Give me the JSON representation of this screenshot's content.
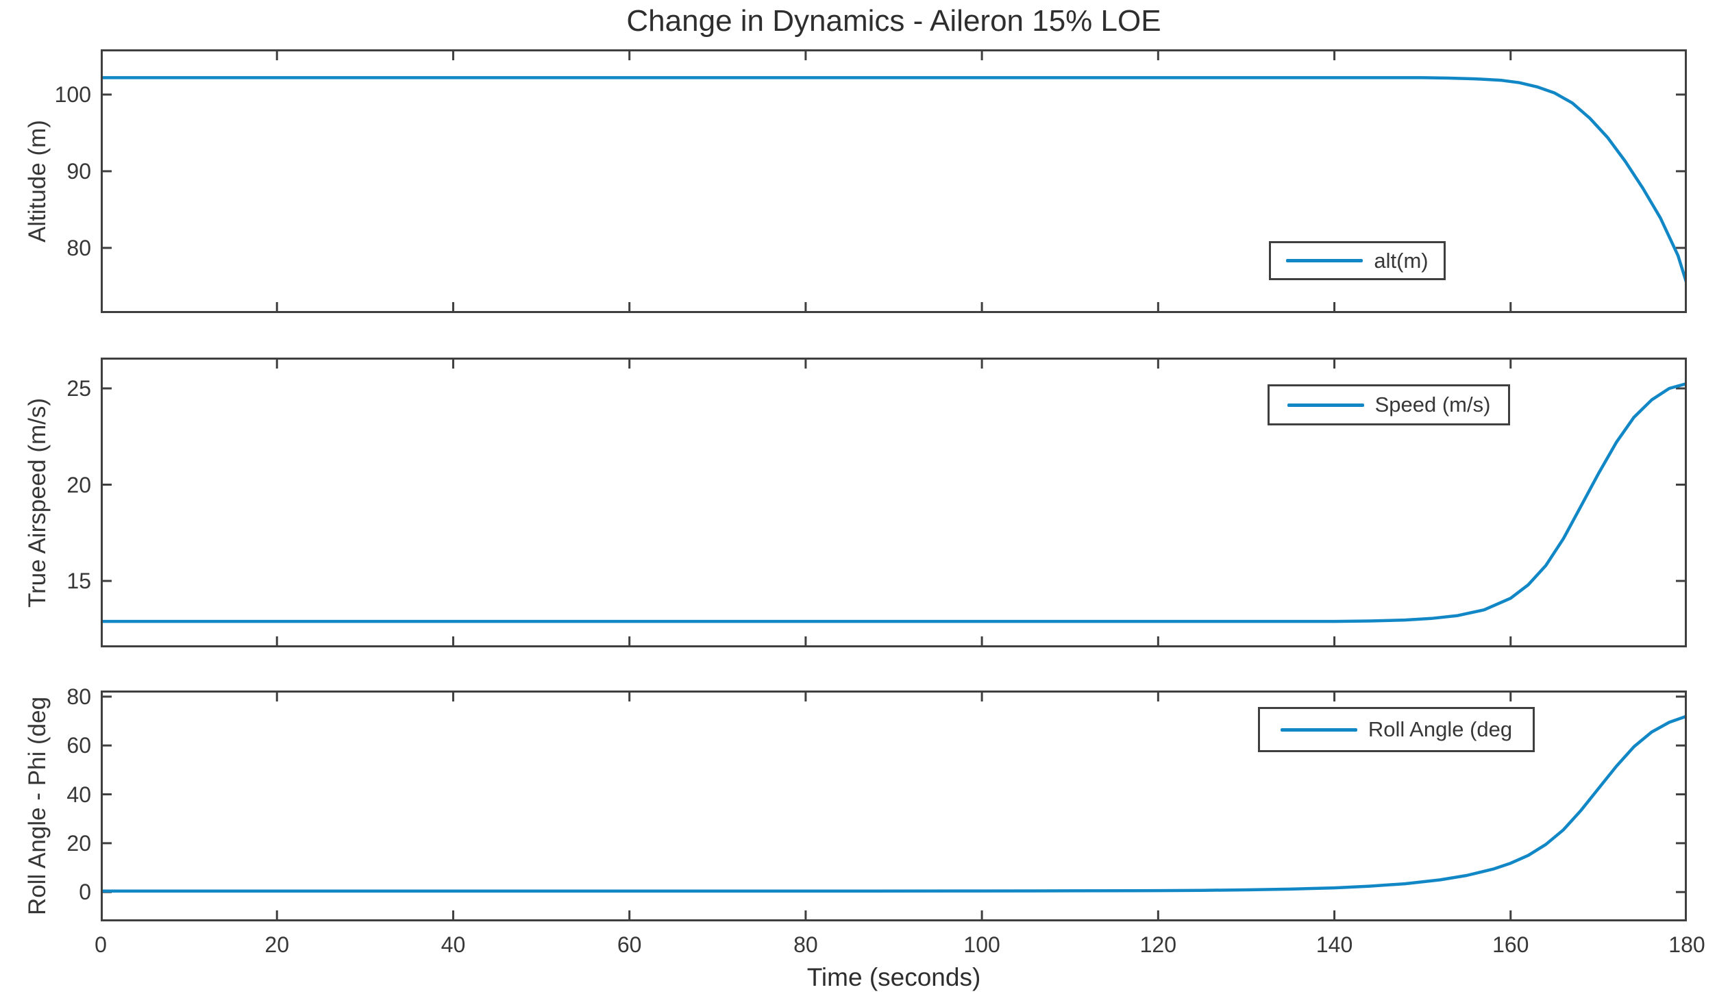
{
  "figure": {
    "title": "Change in Dynamics - Aileron 15% LOE",
    "xlabel": "Time (seconds)",
    "background_color": "#ffffff",
    "axis_color": "#3f3f3f",
    "text_color": "#373737",
    "line_color": "#1287c6"
  },
  "chart_data": [
    {
      "type": "line",
      "ylabel": "Altitude (m)",
      "legend": "alt(m)",
      "legend_position": "right-lower-inset",
      "grid": false,
      "xlim": [
        0,
        180
      ],
      "ylim": [
        71.5,
        105.9
      ],
      "xticks": [
        0,
        20,
        40,
        60,
        80,
        100,
        120,
        140,
        160,
        180
      ],
      "yticks": [
        80,
        90,
        100
      ],
      "x": [
        0,
        10,
        20,
        30,
        40,
        50,
        60,
        70,
        80,
        90,
        100,
        110,
        120,
        130,
        140,
        145,
        150,
        153,
        156,
        159,
        161,
        163,
        165,
        167,
        169,
        171,
        173,
        175,
        177,
        179,
        180
      ],
      "y": [
        102.2,
        102.2,
        102.2,
        102.2,
        102.2,
        102.2,
        102.2,
        102.2,
        102.2,
        102.2,
        102.2,
        102.2,
        102.2,
        102.2,
        102.2,
        102.2,
        102.2,
        102.15,
        102.05,
        101.85,
        101.55,
        101.0,
        100.2,
        98.9,
        96.9,
        94.4,
        91.3,
        87.8,
        83.9,
        79.0,
        75.3
      ]
    },
    {
      "type": "line",
      "ylabel": "True Airspeed (m/s)",
      "legend": "Speed (m/s)",
      "legend_position": "top-right-inset",
      "grid": false,
      "xlim": [
        0,
        180
      ],
      "ylim": [
        11.55,
        26.6
      ],
      "xticks": [
        0,
        20,
        40,
        60,
        80,
        100,
        120,
        140,
        160,
        180
      ],
      "yticks": [
        15,
        20,
        25
      ],
      "x": [
        0,
        20,
        40,
        60,
        80,
        100,
        120,
        130,
        140,
        144,
        148,
        151,
        154,
        157,
        160,
        162,
        164,
        166,
        168,
        170,
        172,
        174,
        176,
        178,
        180
      ],
      "y": [
        12.9,
        12.9,
        12.9,
        12.9,
        12.9,
        12.9,
        12.9,
        12.9,
        12.9,
        12.92,
        12.97,
        13.05,
        13.2,
        13.5,
        14.1,
        14.8,
        15.8,
        17.2,
        18.9,
        20.6,
        22.2,
        23.5,
        24.4,
        25.0,
        25.25
      ]
    },
    {
      "type": "line",
      "ylabel": "Roll Angle - Phi (deg",
      "legend": "Roll Angle (deg",
      "legend_position": "top-right-inset",
      "grid": false,
      "xlim": [
        0,
        180
      ],
      "ylim": [
        -12,
        82.5
      ],
      "xticks": [
        0,
        20,
        40,
        60,
        80,
        100,
        120,
        140,
        160,
        180
      ],
      "yticks": [
        0,
        20,
        40,
        60,
        80
      ],
      "x": [
        0,
        20,
        40,
        60,
        80,
        100,
        110,
        120,
        125,
        130,
        135,
        140,
        144,
        148,
        152,
        155,
        158,
        160,
        162,
        164,
        166,
        168,
        170,
        172,
        174,
        176,
        178,
        180
      ],
      "y": [
        0.4,
        0.4,
        0.4,
        0.4,
        0.4,
        0.45,
        0.5,
        0.6,
        0.7,
        0.9,
        1.2,
        1.7,
        2.4,
        3.4,
        5.0,
        6.8,
        9.4,
        11.8,
        15.0,
        19.5,
        25.5,
        33.5,
        42.5,
        51.5,
        59.5,
        65.5,
        69.5,
        72.0
      ]
    }
  ]
}
